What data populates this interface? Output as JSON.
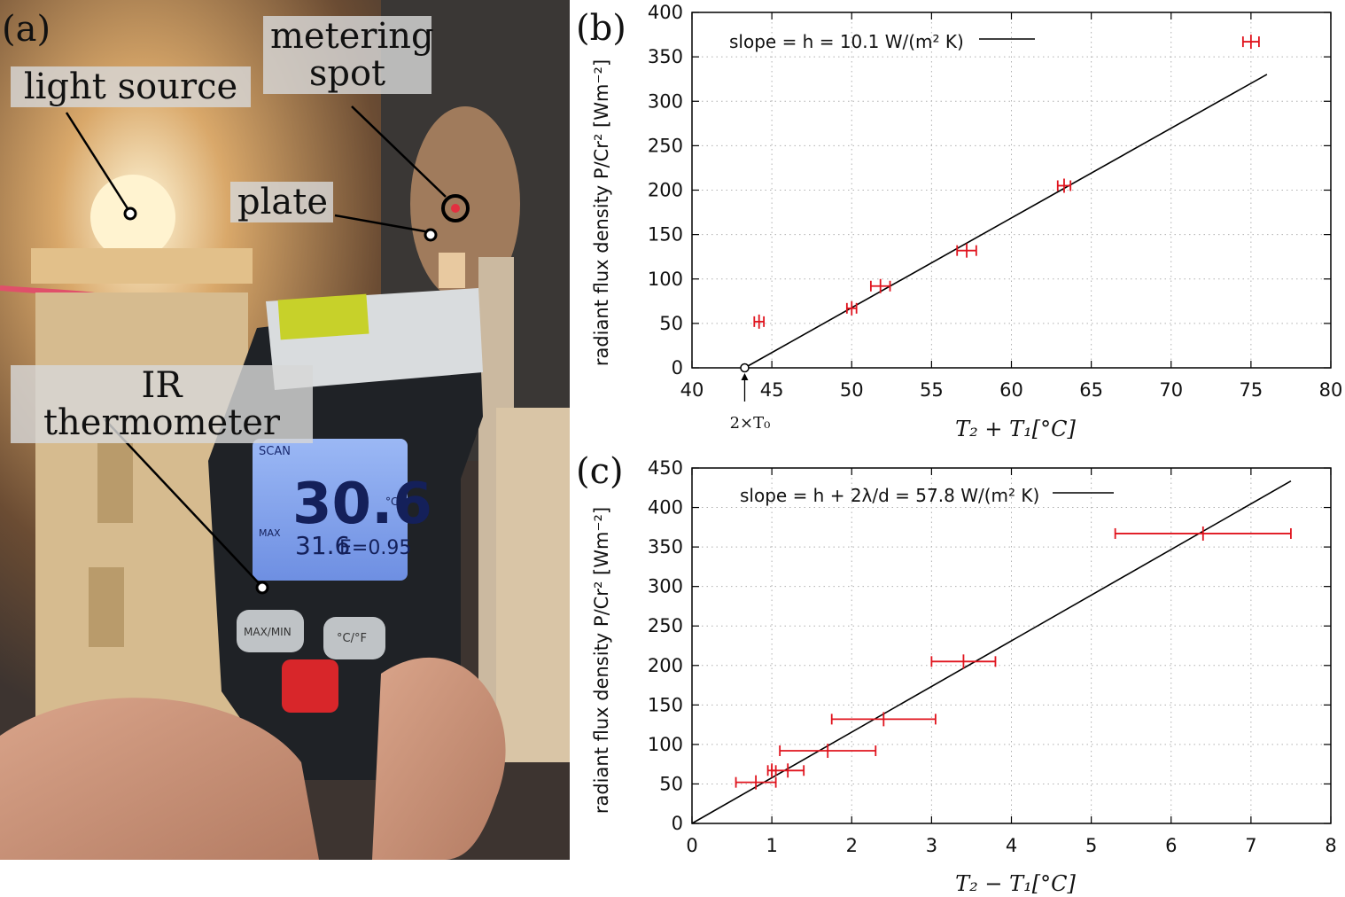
{
  "panel_a": {
    "label": "(a)",
    "callouts": {
      "light_source": "light source",
      "metering_spot_line1": "metering",
      "metering_spot_line2": "spot",
      "plate": "plate",
      "ir_thermometer": "IR thermometer"
    },
    "device": {
      "scan": "SCAN",
      "reading": "30.6",
      "unit": "°C",
      "max_label": "MAX",
      "max_value": "31.6",
      "emissivity": "E=0.95",
      "button_left": "MAX/MIN",
      "button_right": "°C/°F"
    }
  },
  "colors": {
    "error_bar": "#e0141e",
    "fit_line": "#000000",
    "grid": "#b0b0b0"
  },
  "chart_data": [
    {
      "panel_label": "(b)",
      "type": "scatter",
      "title": "",
      "xlabel_serif": "T₂ + T₁[°C]",
      "ylabel": "radiant flux density  P/Cr² [Wm⁻²]",
      "xlim": [
        40,
        80
      ],
      "ylim": [
        0,
        400
      ],
      "xticks": [
        40,
        45,
        50,
        55,
        60,
        65,
        70,
        75,
        80
      ],
      "yticks": [
        0,
        50,
        100,
        150,
        200,
        250,
        300,
        350,
        400
      ],
      "grid": true,
      "legend": {
        "position": "top-left",
        "text": "slope = h = 10.1 W/(m² K)"
      },
      "points": [
        {
          "x": 44.2,
          "y": 52,
          "xerr": 0.3
        },
        {
          "x": 50.0,
          "y": 67,
          "xerr": 0.3
        },
        {
          "x": 51.8,
          "y": 92,
          "xerr": 0.6
        },
        {
          "x": 57.2,
          "y": 132,
          "xerr": 0.6
        },
        {
          "x": 63.3,
          "y": 205,
          "xerr": 0.4
        },
        {
          "x": 75.0,
          "y": 367,
          "xerr": 0.5
        }
      ],
      "fit": {
        "slope": 10.1,
        "x_intercept": 43.3,
        "x_end": 76
      },
      "annotation": {
        "text": "2×T₀",
        "x": 43.3,
        "y": 0
      }
    },
    {
      "panel_label": "(c)",
      "type": "scatter",
      "title": "",
      "xlabel_serif": "T₂ − T₁[°C]",
      "ylabel": "radiant flux density  P/Cr² [Wm⁻²]",
      "xlim": [
        0,
        8
      ],
      "ylim": [
        0,
        450
      ],
      "xticks": [
        0,
        1,
        2,
        3,
        4,
        5,
        6,
        7,
        8
      ],
      "yticks": [
        0,
        50,
        100,
        150,
        200,
        250,
        300,
        350,
        400,
        450
      ],
      "grid": true,
      "legend": {
        "position": "top-left",
        "text": "slope = h + 2λ/d = 57.8 W/(m² K)"
      },
      "points": [
        {
          "x": 0.8,
          "y": 52,
          "xerr": 0.25
        },
        {
          "x": 1.0,
          "y": 67,
          "xerr": 0.05
        },
        {
          "x": 1.2,
          "y": 67,
          "xerr": 0.2
        },
        {
          "x": 1.7,
          "y": 92,
          "xerr": 0.6
        },
        {
          "x": 2.4,
          "y": 132,
          "xerr": 0.65
        },
        {
          "x": 3.4,
          "y": 205,
          "xerr": 0.4
        },
        {
          "x": 6.4,
          "y": 367,
          "xerr": 1.1
        }
      ],
      "fit": {
        "slope": 57.8,
        "x_intercept": 0,
        "x_end": 7.5
      }
    }
  ]
}
